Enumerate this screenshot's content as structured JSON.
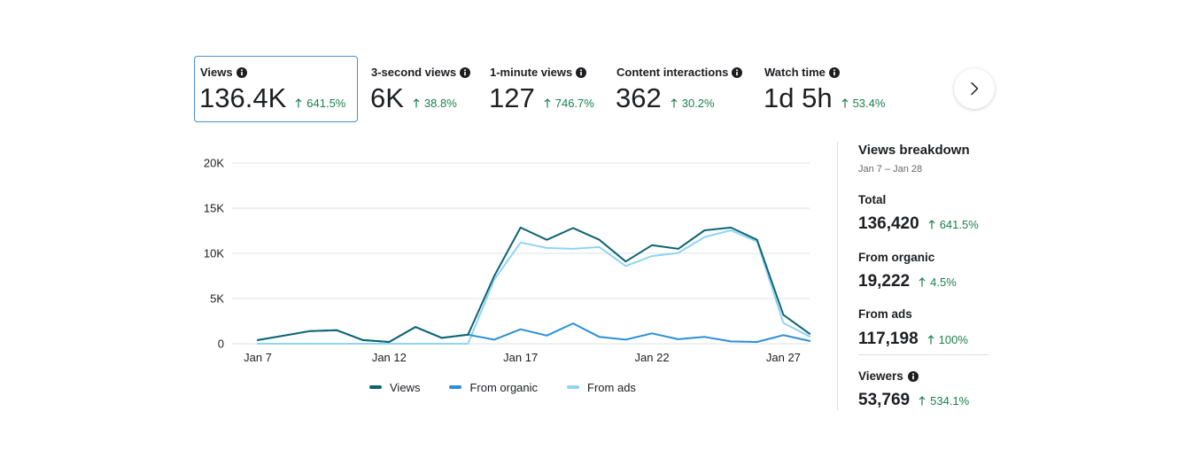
{
  "metrics": [
    {
      "label": "Views",
      "value": "136.4K",
      "change": "641.5%",
      "selected": true
    },
    {
      "label": "3-second views",
      "value": "6K",
      "change": "38.8%",
      "selected": false
    },
    {
      "label": "1-minute views",
      "value": "127",
      "change": "746.7%",
      "selected": false
    },
    {
      "label": "Content interactions",
      "value": "362",
      "change": "30.2%",
      "selected": false
    },
    {
      "label": "Watch time",
      "value": "1d 5h",
      "change": "53.4%",
      "selected": false
    }
  ],
  "next_button": {
    "icon": "chevron-right-icon"
  },
  "colors": {
    "positive_change": "#1a7f4b",
    "selected_border": "#4a8fd6"
  },
  "chart_data": {
    "type": "line",
    "title": "",
    "xlabel": "",
    "ylabel": "",
    "x": [
      "Jan 7",
      "Jan 8",
      "Jan 9",
      "Jan 10",
      "Jan 11",
      "Jan 12",
      "Jan 13",
      "Jan 14",
      "Jan 15",
      "Jan 16",
      "Jan 17",
      "Jan 18",
      "Jan 19",
      "Jan 20",
      "Jan 21",
      "Jan 22",
      "Jan 23",
      "Jan 24",
      "Jan 25",
      "Jan 26",
      "Jan 27",
      "Jan 28"
    ],
    "x_ticks": [
      "Jan 7",
      "Jan 12",
      "Jan 17",
      "Jan 22",
      "Jan 27"
    ],
    "y_ticks": [
      "0",
      "5K",
      "10K",
      "15K",
      "20K"
    ],
    "y_tick_values": [
      0,
      5000,
      10000,
      15000,
      20000
    ],
    "ylim": [
      0,
      20000
    ],
    "grid": true,
    "legend_position": "bottom",
    "series": [
      {
        "name": "Views",
        "color": "#0e6470",
        "values": [
          400,
          900,
          1400,
          1500,
          400,
          200,
          1850,
          650,
          1000,
          7500,
          12850,
          11500,
          12800,
          11500,
          9100,
          10900,
          10500,
          12550,
          12850,
          11500,
          3200,
          1100
        ]
      },
      {
        "name": "From organic",
        "color": "#2b8fd6",
        "values": [
          400,
          900,
          1400,
          1500,
          400,
          200,
          1850,
          650,
          1000,
          450,
          1600,
          900,
          2250,
          750,
          450,
          1150,
          500,
          750,
          250,
          200,
          950,
          300
        ]
      },
      {
        "name": "From ads",
        "color": "#90d4f4",
        "values": [
          0,
          0,
          0,
          0,
          0,
          0,
          0,
          0,
          0,
          7100,
          11200,
          10600,
          10500,
          10700,
          8600,
          9700,
          10050,
          11800,
          12550,
          11300,
          2300,
          800
        ]
      }
    ]
  },
  "breakdown": {
    "title": "Views breakdown",
    "date_range": "Jan 7 – Jan 28",
    "total": {
      "label": "Total",
      "value": "136,420",
      "change": "641.5%"
    },
    "organic": {
      "label": "From organic",
      "value": "19,222",
      "change": "4.5%"
    },
    "ads": {
      "label": "From ads",
      "value": "117,198",
      "change": "100%"
    },
    "viewers": {
      "label": "Viewers",
      "value": "53,769",
      "change": "534.1%"
    }
  }
}
